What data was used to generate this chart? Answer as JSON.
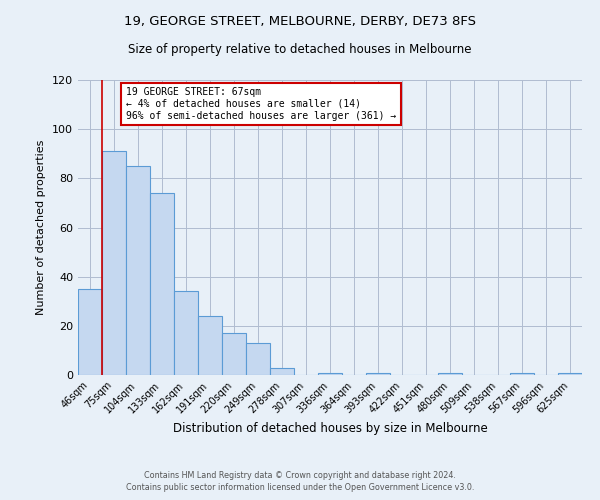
{
  "title": "19, GEORGE STREET, MELBOURNE, DERBY, DE73 8FS",
  "subtitle": "Size of property relative to detached houses in Melbourne",
  "xlabel": "Distribution of detached houses by size in Melbourne",
  "ylabel": "Number of detached properties",
  "bar_color": "#c5d8f0",
  "bar_edge_color": "#5b9bd5",
  "background_color": "#e8f0f8",
  "bin_labels": [
    "46sqm",
    "75sqm",
    "104sqm",
    "133sqm",
    "162sqm",
    "191sqm",
    "220sqm",
    "249sqm",
    "278sqm",
    "307sqm",
    "336sqm",
    "364sqm",
    "393sqm",
    "422sqm",
    "451sqm",
    "480sqm",
    "509sqm",
    "538sqm",
    "567sqm",
    "596sqm",
    "625sqm"
  ],
  "bar_values": [
    35,
    91,
    85,
    74,
    34,
    24,
    17,
    13,
    3,
    0,
    1,
    0,
    1,
    0,
    0,
    1,
    0,
    0,
    1,
    0,
    1
  ],
  "ylim": [
    0,
    120
  ],
  "yticks": [
    0,
    20,
    40,
    60,
    80,
    100,
    120
  ],
  "annotation_title": "19 GEORGE STREET: 67sqm",
  "annotation_line1": "← 4% of detached houses are smaller (14)",
  "annotation_line2": "96% of semi-detached houses are larger (361) →",
  "annotation_box_color": "#ffffff",
  "annotation_box_edge_color": "#cc0000",
  "vline_color": "#cc0000",
  "footer1": "Contains HM Land Registry data © Crown copyright and database right 2024.",
  "footer2": "Contains public sector information licensed under the Open Government Licence v3.0."
}
